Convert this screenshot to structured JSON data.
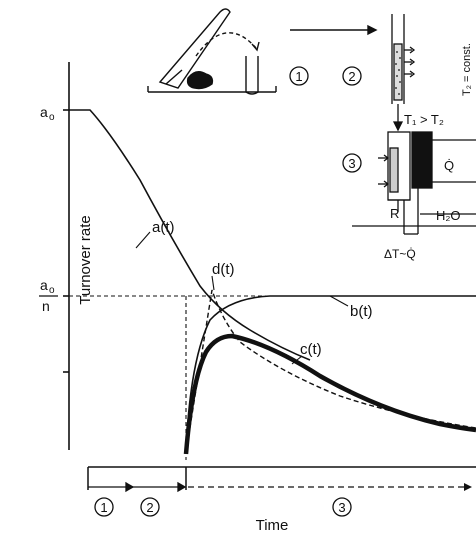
{
  "diagram": {
    "y_axis_label": "Turnover rate",
    "x_axis_label": "Time",
    "y_tick_a0": "a",
    "y_tick_a0_sub": "o",
    "y_tick_frac_num_a": "a",
    "y_tick_frac_num_sub": "o",
    "y_tick_frac_den": "n",
    "curve_labels": {
      "a": "a(t)",
      "b": "b(t)",
      "c": "c(t)",
      "d": "d(t)"
    },
    "phases": {
      "p1": "1",
      "p2": "2",
      "p3": "3"
    },
    "inset": {
      "t2_const": "T₂ = const.",
      "t1_gt_t2": "T₁ > T₂",
      "q_dot_1": "Q̇",
      "q_dot_2": "Q̇",
      "r_label": "R",
      "h2o": "H₂O",
      "delta_t": "ΔT~Q̇"
    }
  }
}
